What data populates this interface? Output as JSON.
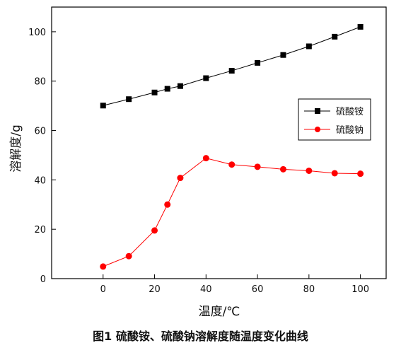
{
  "chart_data": {
    "type": "line",
    "xlabel": "温度/℃",
    "ylabel": "溶解度/g",
    "xlim": [
      -20,
      110
    ],
    "ylim": [
      0,
      110
    ],
    "x_ticks": [
      0,
      20,
      40,
      60,
      80,
      100
    ],
    "y_ticks": [
      0,
      20,
      40,
      60,
      80,
      100
    ],
    "legend_position": "right",
    "grid": false,
    "series": [
      {
        "name": "硫酸铵",
        "color": "#000000",
        "marker": "square",
        "x": [
          0,
          10,
          20,
          25,
          30,
          40,
          50,
          60,
          70,
          80,
          90,
          100
        ],
        "y": [
          70.1,
          72.7,
          75.4,
          76.9,
          78.0,
          81.2,
          84.2,
          87.4,
          90.6,
          94.1,
          98.0,
          102.0
        ]
      },
      {
        "name": "硫酸钠",
        "color": "#ff0000",
        "marker": "circle",
        "x": [
          0,
          10,
          20,
          25,
          30,
          40,
          50,
          60,
          70,
          80,
          90,
          100
        ],
        "y": [
          4.9,
          9.1,
          19.5,
          30.0,
          40.8,
          48.8,
          46.2,
          45.3,
          44.3,
          43.7,
          42.7,
          42.5
        ]
      }
    ]
  },
  "caption": "图1  硫酸铵、硫酸钠溶解度随温度变化曲线"
}
